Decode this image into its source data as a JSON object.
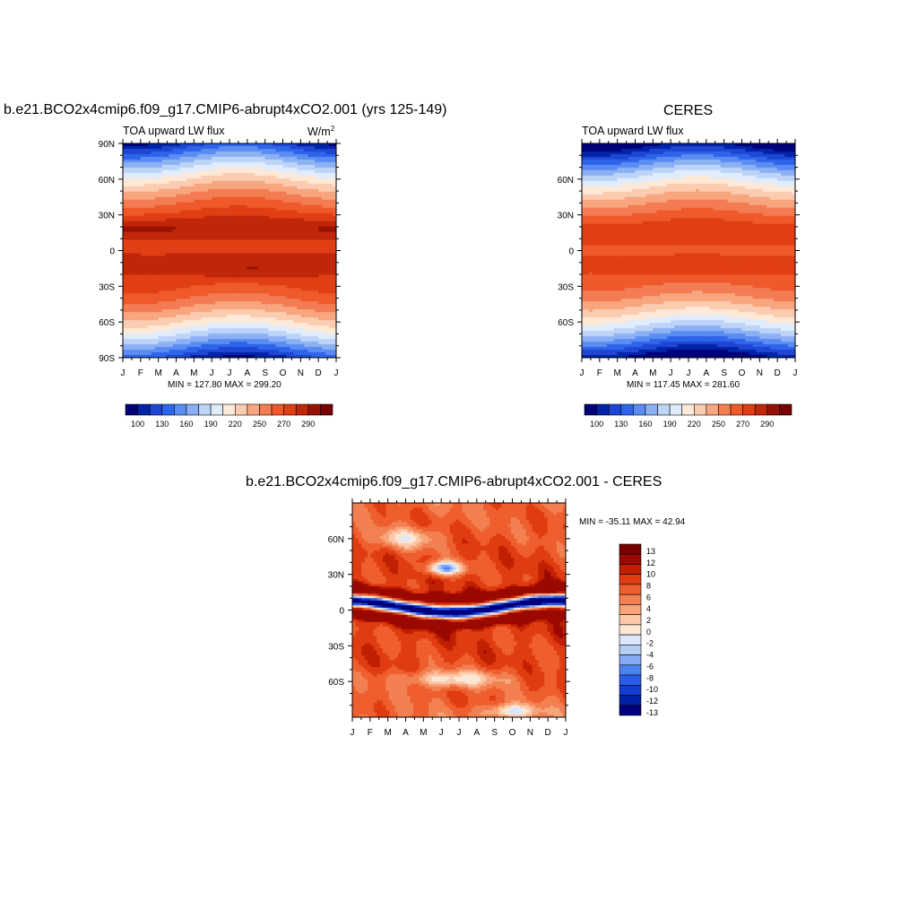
{
  "panel1": {
    "title": "b.e21.BCO2x4cmip6.f09_g17.CMIP6-abrupt4xCO2.001 (yrs 125-149)",
    "left_string": "TOA upward LW flux",
    "units_base": "W/m",
    "units_exp": "2",
    "minmax": "MIN = 127.80 MAX = 299.20"
  },
  "panel2": {
    "title": "CERES",
    "left_string": "TOA upward LW flux",
    "minmax": "MIN = 117.45 MAX = 281.60"
  },
  "panel3": {
    "title": "b.e21.BCO2x4cmip6.f09_g17.CMIP6-abrupt4xCO2.001 - CERES",
    "minmax": "MIN = -35.11 MAX =  42.94"
  },
  "colors": {
    "abs_palette": [
      "#00007a",
      "#0024a8",
      "#1e46d2",
      "#2e64ea",
      "#5a8cf2",
      "#8cb0f4",
      "#bcd4f8",
      "#e0ecfc",
      "#fde9d8",
      "#fcccb0",
      "#f8a680",
      "#f47c52",
      "#ee5a2c",
      "#e03e14",
      "#c02608",
      "#961202",
      "#780000"
    ],
    "diff_palette": [
      "#00007e",
      "#0020a8",
      "#123cd2",
      "#2a5cea",
      "#4a82f0",
      "#84aaf2",
      "#b4cef6",
      "#dce8fa",
      "#fde6d4",
      "#fcc8a8",
      "#f8a47a",
      "#f28050",
      "#ee5e2e",
      "#e03c12",
      "#c02000",
      "#9a0800",
      "#780000"
    ]
  },
  "chart_data": [
    {
      "type": "heatmap",
      "title": "b.e21.BCO2x4cmip6.f09_g17.CMIP6-abrupt4xCO2.001 (yrs 125-149)",
      "left_string": "TOA upward LW flux",
      "units": "W/m2",
      "x_ticks": [
        "J",
        "F",
        "M",
        "A",
        "M",
        "J",
        "J",
        "A",
        "S",
        "O",
        "N",
        "D",
        "J"
      ],
      "y_ticks": [
        "90N",
        "60N",
        "30N",
        "0",
        "30S",
        "60S",
        "90S"
      ],
      "y_tick_values": [
        90,
        60,
        30,
        0,
        -30,
        -60,
        -90
      ],
      "ylim": [
        -90,
        90
      ],
      "levels": [
        100,
        110,
        120,
        130,
        140,
        150,
        160,
        170,
        180,
        190,
        200,
        210,
        220,
        230,
        240,
        250,
        260,
        270,
        280,
        290
      ],
      "colorbar_labels": [
        "100",
        "130",
        "160",
        "190",
        "220",
        "250",
        "270",
        "290"
      ],
      "min": 127.8,
      "max": 299.2
    },
    {
      "type": "heatmap",
      "title": "CERES",
      "left_string": "TOA upward LW flux",
      "x_ticks": [
        "J",
        "F",
        "M",
        "A",
        "M",
        "J",
        "J",
        "A",
        "S",
        "O",
        "N",
        "D",
        "J"
      ],
      "y_ticks": [
        "60N",
        "30N",
        "0",
        "30S",
        "60S"
      ],
      "y_tick_values": [
        60,
        30,
        0,
        -30,
        -60
      ],
      "ylim": [
        -90,
        90
      ],
      "colorbar_labels": [
        "100",
        "130",
        "160",
        "190",
        "220",
        "250",
        "270",
        "290"
      ],
      "min": 117.45,
      "max": 281.6
    },
    {
      "type": "heatmap",
      "title": "b.e21.BCO2x4cmip6.f09_g17.CMIP6-abrupt4xCO2.001 - CERES",
      "x_ticks": [
        "J",
        "F",
        "M",
        "A",
        "M",
        "J",
        "J",
        "A",
        "S",
        "O",
        "N",
        "D",
        "J"
      ],
      "y_ticks": [
        "60N",
        "30N",
        "0",
        "30S",
        "60S"
      ],
      "y_tick_values": [
        60,
        30,
        0,
        -30,
        -60
      ],
      "ylim": [
        -90,
        90
      ],
      "levels": [
        -13,
        -12,
        -10,
        -8,
        -6,
        -4,
        -2,
        0,
        2,
        4,
        6,
        8,
        10,
        12,
        13
      ],
      "colorbar_labels": [
        "13",
        "12",
        "10",
        "8",
        "6",
        "4",
        "2",
        "0",
        "-2",
        "-4",
        "-6",
        "-8",
        "-10",
        "-12",
        "-13"
      ],
      "min": -35.11,
      "max": 42.94
    }
  ]
}
